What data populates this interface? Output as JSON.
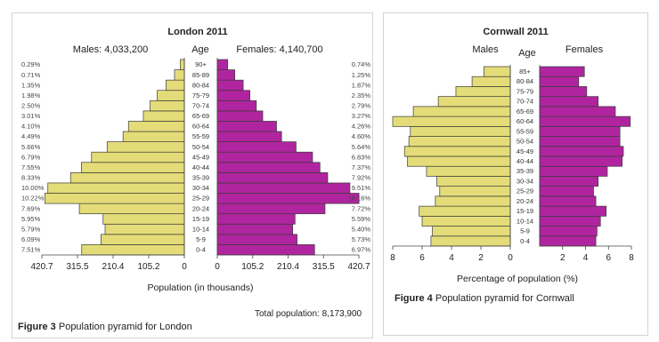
{
  "london": {
    "caption_label": "Figure 3",
    "caption_text": "Population pyramid for London",
    "total": "Total population: 8,173,900",
    "chart_data": {
      "type": "bar",
      "orientation": "horizontal-pyramid",
      "title": "London 2011",
      "males_label": "Males: 4,033,200",
      "females_label": "Females: 4,140,700",
      "age_label": "Age",
      "xlabel": "Population (in thousands)",
      "x_ticks_left": [
        "420.7",
        "315.5",
        "210.4",
        "105.2",
        "0"
      ],
      "x_ticks_right": [
        "0",
        "105.2",
        "210.4",
        "315.5",
        "420.7"
      ],
      "xlim": [
        0,
        420.7
      ],
      "categories": [
        "0-4",
        "5-9",
        "10-14",
        "15-19",
        "20-24",
        "25-29",
        "30-34",
        "35-39",
        "40-44",
        "45-49",
        "50-54",
        "55-59",
        "60-64",
        "65-69",
        "70-74",
        "75-79",
        "80-84",
        "85-89",
        "90+"
      ],
      "series": [
        {
          "name": "Males",
          "percent_labels": [
            "7.51%",
            "6.09%",
            "5.79%",
            "5.95%",
            "7.69%",
            "10.22%",
            "10.00%",
            "8.33%",
            "7.55%",
            "6.79%",
            "5.66%",
            "4.49%",
            "4.10%",
            "3.01%",
            "2.50%",
            "1.98%",
            "1.35%",
            "0.71%",
            "0.29%"
          ],
          "values": [
            303,
            246,
            234,
            240,
            310,
            412,
            403,
            336,
            304,
            274,
            228,
            181,
            165,
            121,
            101,
            80,
            54,
            29,
            12
          ]
        },
        {
          "name": "Females",
          "percent_labels": [
            "6.97%",
            "5.73%",
            "5.40%",
            "5.59%",
            "7.72%",
            "10.16%",
            "9.51%",
            "7.92%",
            "7.37%",
            "6.83%",
            "5.64%",
            "4.60%",
            "4.26%",
            "3.27%",
            "2.79%",
            "2.35%",
            "1.87%",
            "1.25%",
            "0.74%"
          ],
          "values": [
            289,
            237,
            224,
            231,
            320,
            421,
            394,
            328,
            305,
            283,
            234,
            191,
            176,
            135,
            116,
            97,
            77,
            52,
            31
          ]
        }
      ],
      "colors": {
        "males": "#e4dc78",
        "females": "#b0259f",
        "outline": "#3a3a3a"
      }
    }
  },
  "cornwall": {
    "caption_label": "Figure 4",
    "caption_text": "Population pyramid for Cornwall",
    "chart_data": {
      "type": "bar",
      "orientation": "horizontal-pyramid",
      "title": "Cornwall 2011",
      "males_label": "Males",
      "females_label": "Females",
      "age_label": "Age",
      "xlabel": "Percentage of population (%)",
      "x_ticks_left": [
        "8",
        "6",
        "4",
        "2",
        "0"
      ],
      "x_ticks_right": [
        "2",
        "4",
        "6",
        "8"
      ],
      "xlim": [
        0,
        8
      ],
      "categories": [
        "0-4",
        "5-9",
        "10-14",
        "15-19",
        "20-24",
        "25-29",
        "30-34",
        "35-39",
        "40-44",
        "45-49",
        "50-54",
        "55-59",
        "60-64",
        "65-69",
        "70-74",
        "75-79",
        "80-84",
        "85+"
      ],
      "series": [
        {
          "name": "Males",
          "values": [
            5.4,
            5.3,
            6.0,
            6.2,
            5.1,
            4.8,
            5.0,
            5.7,
            7.0,
            7.2,
            6.9,
            6.8,
            8.0,
            6.6,
            4.9,
            3.7,
            2.6,
            1.8
          ]
        },
        {
          "name": "Females",
          "values": [
            4.9,
            5.0,
            5.3,
            5.8,
            4.9,
            4.7,
            5.1,
            5.9,
            7.2,
            7.3,
            7.0,
            7.0,
            7.9,
            6.6,
            5.1,
            4.1,
            3.4,
            3.9
          ]
        }
      ],
      "colors": {
        "males": "#e4dc78",
        "females": "#b0259f",
        "outline": "#3a3a3a"
      }
    }
  }
}
